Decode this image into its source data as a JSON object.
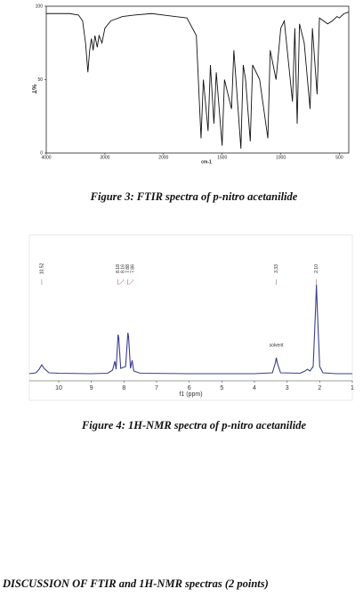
{
  "chart_data": [
    {
      "type": "line",
      "caption": "Figure 3: FTIR spectra of p-nitro acetanilide",
      "xlabel": "cm-1",
      "ylabel": "%T",
      "xlim": [
        4000,
        420
      ],
      "xticks": [
        4000,
        3000,
        2000,
        1500,
        1000,
        500
      ],
      "ylim": [
        0,
        100
      ],
      "yticks": [
        0,
        50,
        100
      ],
      "color": "#111111",
      "x": [
        4000,
        3800,
        3600,
        3450,
        3380,
        3330,
        3290,
        3260,
        3230,
        3200,
        3170,
        3130,
        3100,
        3050,
        3000,
        2900,
        2700,
        2500,
        2200,
        2000,
        1900,
        1800,
        1720,
        1680,
        1660,
        1620,
        1600,
        1570,
        1550,
        1500,
        1480,
        1420,
        1400,
        1340,
        1320,
        1300,
        1260,
        1240,
        1180,
        1110,
        1090,
        1040,
        1000,
        970,
        900,
        880,
        860,
        840,
        800,
        750,
        730,
        690,
        670,
        600,
        560,
        520,
        500,
        460,
        420
      ],
      "values": [
        95,
        95,
        95,
        94,
        90,
        75,
        55,
        70,
        78,
        70,
        80,
        72,
        80,
        75,
        85,
        90,
        93,
        94,
        95,
        94,
        93,
        92,
        80,
        10,
        50,
        15,
        60,
        20,
        55,
        5,
        50,
        30,
        70,
        3,
        60,
        50,
        8,
        60,
        50,
        10,
        70,
        50,
        85,
        90,
        35,
        85,
        20,
        88,
        75,
        30,
        85,
        40,
        92,
        88,
        90,
        93,
        92,
        95,
        96
      ]
    },
    {
      "type": "nmr",
      "caption": "Figure 4: 1H-NMR spectra of p-nitro acetanilide",
      "xlabel": "f1 (ppm)",
      "xlim": [
        10.9,
        1.0
      ],
      "xticks": [
        10,
        9,
        8,
        7,
        6,
        5,
        4,
        3,
        2,
        1
      ],
      "ylim": [
        0,
        100
      ],
      "color": "#3a3f8f",
      "annotation": "solvent",
      "annotation_at": 3.33,
      "peak_labels": [
        10.52,
        8.18,
        8.16,
        7.88,
        7.86,
        3.33,
        {
          "value": 2.1,
          "label": "2.10"
        }
      ],
      "x": [
        10.9,
        10.7,
        10.6,
        10.52,
        10.45,
        10.3,
        10,
        9,
        8.5,
        8.35,
        8.28,
        8.24,
        8.18,
        8.16,
        8.1,
        7.95,
        7.88,
        7.86,
        7.8,
        7.75,
        7.7,
        7.5,
        6,
        4,
        3.45,
        3.36,
        3.33,
        3.3,
        3.2,
        2.6,
        2.45,
        2.38,
        2.3,
        2.2,
        2.13,
        2.1,
        2.07,
        2,
        1.9,
        1.5,
        1
      ],
      "values": [
        0,
        1,
        5,
        10,
        6,
        1,
        0.5,
        0,
        0.5,
        4,
        14,
        5,
        44,
        40,
        6,
        8,
        46,
        42,
        6,
        15,
        3,
        0.5,
        0,
        0,
        1,
        12,
        18,
        12,
        1,
        0.5,
        3,
        5,
        3,
        8,
        70,
        100,
        70,
        8,
        1,
        0,
        0
      ]
    }
  ],
  "section_heading": "DISCUSSION OF FTIR and 1H-NMR spectras (2 points)"
}
